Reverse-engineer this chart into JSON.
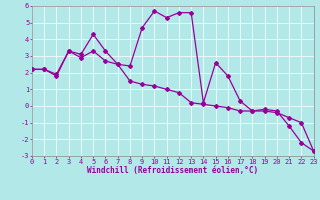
{
  "xlabel": "Windchill (Refroidissement éolien,°C)",
  "background_color": "#b2e8e8",
  "grid_color": "#ffffff",
  "line_color": "#990099",
  "xmin": 0,
  "xmax": 23,
  "ymin": -3,
  "ymax": 6,
  "series1_x": [
    0,
    1,
    2,
    3,
    4,
    5,
    6,
    7,
    8,
    9,
    10,
    11,
    12,
    13,
    14,
    15,
    16,
    17,
    18,
    19,
    20,
    21,
    22,
    23
  ],
  "series1_y": [
    2.2,
    2.2,
    1.9,
    3.3,
    3.1,
    4.3,
    3.3,
    2.5,
    2.4,
    4.7,
    5.7,
    5.3,
    5.6,
    5.6,
    0.2,
    2.6,
    1.8,
    0.3,
    -0.3,
    -0.2,
    -0.3,
    -1.2,
    -2.2,
    -2.7
  ],
  "series2_x": [
    0,
    1,
    2,
    3,
    4,
    5,
    6,
    7,
    8,
    9,
    10,
    11,
    12,
    13,
    14,
    15,
    16,
    17,
    18,
    19,
    20,
    21,
    22,
    23
  ],
  "series2_y": [
    2.2,
    2.2,
    1.8,
    3.3,
    2.9,
    3.3,
    2.7,
    2.5,
    1.5,
    1.3,
    1.2,
    1.0,
    0.8,
    0.2,
    0.1,
    0.0,
    -0.1,
    -0.3,
    -0.3,
    -0.3,
    -0.4,
    -0.7,
    -1.0,
    -2.7
  ],
  "xtick_labels": [
    "0",
    "1",
    "2",
    "3",
    "4",
    "5",
    "6",
    "7",
    "8",
    "9",
    "10",
    "11",
    "12",
    "13",
    "14",
    "15",
    "16",
    "17",
    "18",
    "19",
    "20",
    "21",
    "22",
    "23"
  ],
  "ytick_labels": [
    "-3",
    "-2",
    "-1",
    "0",
    "1",
    "2",
    "3",
    "4",
    "5",
    "6"
  ],
  "marker": "D",
  "marker_size": 2,
  "line_width": 0.9,
  "tick_fontsize": 5,
  "xlabel_fontsize": 5.5
}
